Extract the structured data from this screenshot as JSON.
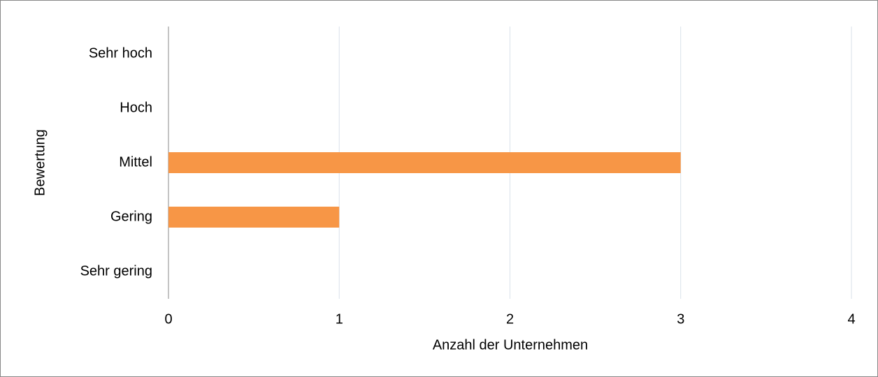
{
  "chart_data": {
    "type": "bar",
    "orientation": "horizontal",
    "categories": [
      "Sehr hoch",
      "Hoch",
      "Mittel",
      "Gering",
      "Sehr gering"
    ],
    "values": [
      0,
      0,
      3,
      1,
      0
    ],
    "color": "#f79646",
    "xlabel": "Anzahl der Unternehmen",
    "ylabel": "Bewertung",
    "xlim": [
      0,
      4
    ],
    "xticks": [
      0,
      1,
      2,
      3,
      4
    ],
    "grid": true
  }
}
